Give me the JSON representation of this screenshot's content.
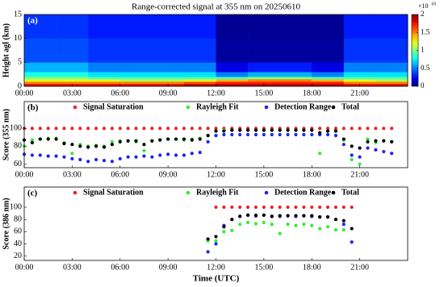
{
  "chart_data": [
    {
      "type": "heatmap",
      "title": "Range-corrected signal at 355 nm on 20250610",
      "panel_label": "(a)",
      "y_label": "Height agl (km)",
      "x_edges": [
        0,
        2,
        4,
        6,
        8,
        10,
        12,
        14,
        16,
        18,
        20,
        22,
        24
      ],
      "y_edges": [
        0,
        0.5,
        1,
        1.5,
        2,
        3,
        5,
        10,
        15
      ],
      "z": [
        [
          1.8,
          1.8,
          1.8,
          1.8,
          1.8,
          1.9,
          1.9,
          1.9,
          1.9,
          1.9,
          1.8,
          1.8
        ],
        [
          1.5,
          1.5,
          1.5,
          1.5,
          1.5,
          1.6,
          1.7,
          1.7,
          1.7,
          1.7,
          1.5,
          1.5
        ],
        [
          1.2,
          1.2,
          1.2,
          1.1,
          1.1,
          1.2,
          1.4,
          1.5,
          1.5,
          1.4,
          1.2,
          1.1
        ],
        [
          1.0,
          1.0,
          0.9,
          0.9,
          0.9,
          0.9,
          0.9,
          1.0,
          1.0,
          0.9,
          0.9,
          0.9
        ],
        [
          0.8,
          0.8,
          0.7,
          0.7,
          0.7,
          0.7,
          0.5,
          0.6,
          0.6,
          0.5,
          0.7,
          0.7
        ],
        [
          0.6,
          0.6,
          0.5,
          0.5,
          0.5,
          0.5,
          0.2,
          0.3,
          0.3,
          0.2,
          0.5,
          0.5
        ],
        [
          0.4,
          0.4,
          0.35,
          0.35,
          0.35,
          0.35,
          0.06,
          0.06,
          0.06,
          0.06,
          0.35,
          0.35
        ],
        [
          0.35,
          0.35,
          0.3,
          0.3,
          0.3,
          0.3,
          0.04,
          0.04,
          0.04,
          0.04,
          0.3,
          0.3
        ]
      ],
      "colormap": "jet",
      "zlim": [
        0,
        2
      ],
      "zticks": [
        0,
        {
          "value": 0.5,
          "label": "0.5"
        },
        1,
        {
          "value": 1.5,
          "label": "1.5"
        },
        2
      ],
      "zlabel_base": "×10",
      "zlabel_exp": "10",
      "xlim": [
        0,
        24
      ],
      "ylim": [
        0,
        15
      ],
      "yticks": [
        0,
        5,
        10,
        15
      ],
      "xticks": [
        {
          "value": 0,
          "label": "00:00"
        },
        {
          "value": 3,
          "label": "03:00"
        },
        {
          "value": 6,
          "label": "06:00"
        },
        {
          "value": 9,
          "label": "09:00"
        },
        {
          "value": 12,
          "label": "12:00"
        },
        {
          "value": 15,
          "label": "15:00"
        },
        {
          "value": 18,
          "label": "18:00"
        },
        {
          "value": 21,
          "label": "21:00"
        }
      ]
    },
    {
      "type": "scatter",
      "panel_label": "(b)",
      "y_label": "Score (355 nm)",
      "x": [
        0,
        0.5,
        1,
        1.5,
        2,
        2.5,
        3,
        3.5,
        4,
        4.5,
        5,
        5.5,
        6,
        6.5,
        7,
        7.5,
        8,
        8.5,
        9,
        9.5,
        10,
        10.5,
        11,
        11.5,
        12,
        12.5,
        13,
        13.5,
        14,
        14.5,
        15,
        15.5,
        16,
        16.5,
        17,
        17.5,
        18,
        18.5,
        19,
        19.5,
        20,
        20.5,
        21,
        21.5,
        22,
        22.5,
        23
      ],
      "series": [
        {
          "name": "Signal Saturation",
          "color": "#e8262a",
          "values": [
            100,
            100,
            100,
            100,
            100,
            100,
            100,
            100,
            100,
            100,
            100,
            100,
            100,
            100,
            100,
            100,
            100,
            100,
            100,
            100,
            100,
            100,
            100,
            100,
            100,
            100,
            100,
            100,
            100,
            100,
            100,
            100,
            100,
            100,
            100,
            100,
            100,
            100,
            100,
            100,
            100,
            100,
            100,
            100,
            100,
            100,
            100
          ]
        },
        {
          "name": "Rayleigh Fit",
          "color": "#33ee33",
          "values": [
            80,
            87,
            88,
            89,
            89,
            84,
            72,
            82,
            80,
            81,
            80,
            85,
            86,
            86,
            85,
            75,
            86,
            87,
            88,
            88,
            87,
            88,
            89,
            92,
            97,
            98,
            98,
            98,
            98,
            98,
            98,
            98,
            98,
            98,
            98,
            98,
            98,
            72,
            97,
            97,
            87,
            65,
            60,
            88,
            84,
            86,
            85
          ]
        },
        {
          "name": "Detection Range",
          "color": "#2222ee",
          "values": [
            71,
            70,
            70,
            69,
            69,
            68,
            66,
            65,
            63,
            65,
            64,
            63,
            66,
            68,
            68,
            69,
            68,
            70,
            71,
            70,
            70,
            72,
            73,
            85,
            92,
            93,
            93,
            93,
            93,
            93,
            93,
            93,
            93,
            93,
            93,
            93,
            93,
            93,
            93,
            92,
            82,
            70,
            68,
            78,
            76,
            74,
            72
          ]
        },
        {
          "name": "Total",
          "color": "#000000",
          "values": [
            87,
            84,
            88,
            88,
            88,
            83,
            82,
            80,
            79,
            80,
            79,
            82,
            85,
            86,
            86,
            82,
            86,
            87,
            88,
            88,
            88,
            87,
            88,
            92,
            97,
            97,
            98,
            98,
            98,
            98,
            98,
            98,
            98,
            98,
            98,
            98,
            98,
            95,
            97,
            97,
            88,
            80,
            78,
            85,
            86,
            86,
            85
          ]
        }
      ],
      "xlim": [
        0,
        24
      ],
      "ylim": [
        56,
        130
      ],
      "yticks": [
        60,
        80,
        100
      ],
      "xticks": [
        {
          "value": 0,
          "label": "00:00"
        },
        {
          "value": 3,
          "label": "03:00"
        },
        {
          "value": 6,
          "label": "06:00"
        },
        {
          "value": 9,
          "label": "09:00"
        },
        {
          "value": 12,
          "label": "12:00"
        },
        {
          "value": 15,
          "label": "15:00"
        },
        {
          "value": 18,
          "label": "18:00"
        },
        {
          "value": 21,
          "label": "21:00"
        }
      ]
    },
    {
      "type": "scatter",
      "panel_label": "(c)",
      "y_label": "Score (386 nm)",
      "x_label": "Time (UTC)",
      "x": [
        11.5,
        12,
        12.5,
        13,
        13.5,
        14,
        14.5,
        15,
        15.5,
        16,
        16.5,
        17,
        17.5,
        18,
        18.5,
        19,
        19.5,
        20,
        20.5
      ],
      "series": [
        {
          "name": "Signal Saturation",
          "color": "#e8262a",
          "values": [
            null,
            100,
            100,
            100,
            100,
            100,
            100,
            100,
            100,
            100,
            100,
            100,
            100,
            100,
            100,
            100,
            100,
            100,
            100
          ]
        },
        {
          "name": "Rayleigh Fit",
          "color": "#33ee33",
          "values": [
            45,
            45,
            60,
            62,
            72,
            75,
            73,
            75,
            72,
            57,
            72,
            70,
            72,
            70,
            65,
            68,
            63,
            63,
            null
          ]
        },
        {
          "name": "Detection Range",
          "color": "#2222ee",
          "values": [
            27,
            40,
            70,
            80,
            85,
            87,
            87,
            87,
            85,
            85,
            86,
            85,
            86,
            85,
            84,
            84,
            80,
            72,
            43
          ]
        },
        {
          "name": "Total",
          "color": "#000000",
          "values": [
            48,
            52,
            68,
            80,
            85,
            87,
            86,
            87,
            85,
            86,
            86,
            86,
            86,
            86,
            84,
            84,
            80,
            78,
            65
          ]
        }
      ],
      "xlim": [
        0,
        24
      ],
      "ylim": [
        13,
        133
      ],
      "yticks": [
        20,
        40,
        60,
        80,
        100
      ],
      "xticks": [
        {
          "value": 0,
          "label": "00:00"
        },
        {
          "value": 3,
          "label": "03:00"
        },
        {
          "value": 6,
          "label": "06:00"
        },
        {
          "value": 9,
          "label": "09:00"
        },
        {
          "value": 12,
          "label": "12:00"
        },
        {
          "value": 15,
          "label": "15:00"
        },
        {
          "value": 18,
          "label": "18:00"
        },
        {
          "value": 21,
          "label": "21:00"
        }
      ]
    }
  ]
}
